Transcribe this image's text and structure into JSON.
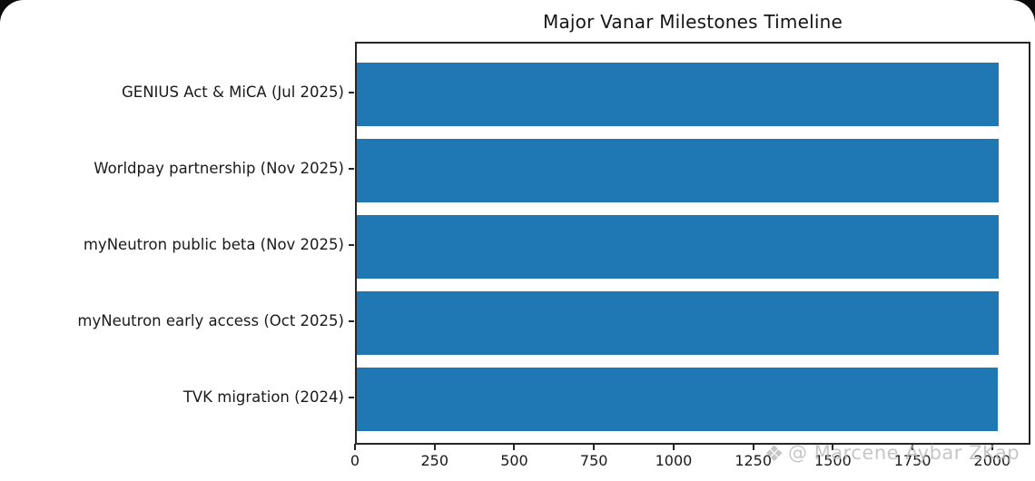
{
  "page": {
    "background_color": "#0b0b0b",
    "card_color": "#ffffff"
  },
  "watermark": {
    "icon": "❖",
    "text": "@ Marcene Aybar ZKap"
  },
  "chart_data": {
    "type": "bar",
    "orientation": "horizontal",
    "title": "Major Vanar Milestones Timeline",
    "categories": [
      "GENIUS Act & MiCA (Jul 2025)",
      "Worldpay partnership (Nov 2025)",
      "myNeutron public beta (Nov 2025)",
      "myNeutron early access (Oct 2025)",
      "TVK migration (2024)"
    ],
    "values": [
      2025,
      2025,
      2025,
      2025,
      2024
    ],
    "xlabel": "",
    "ylabel": "",
    "xticks": [
      0,
      250,
      500,
      750,
      1000,
      1250,
      1500,
      1750,
      2000
    ],
    "xlim": [
      0,
      2120
    ],
    "bar_color": "#1f77b4",
    "grid": false,
    "legend": null
  }
}
